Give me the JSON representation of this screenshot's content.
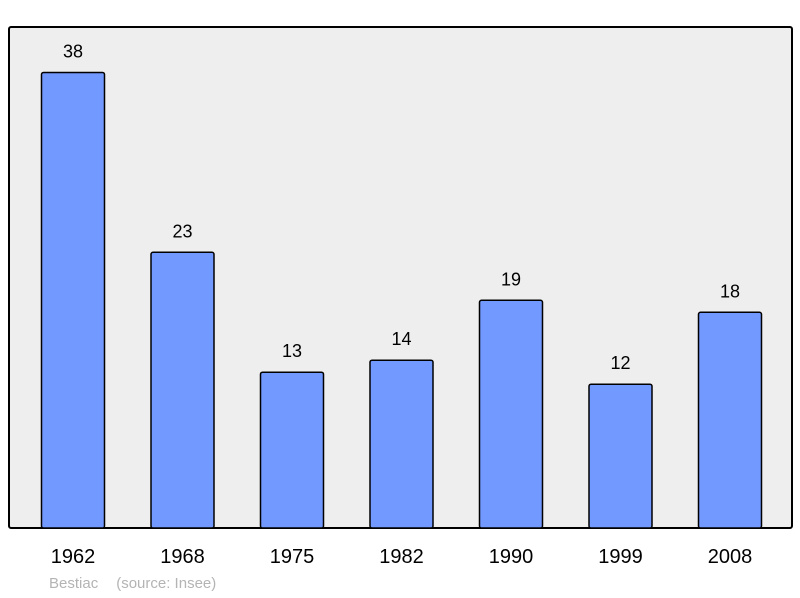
{
  "chart_data": {
    "type": "bar",
    "categories": [
      "1962",
      "1968",
      "1975",
      "1982",
      "1990",
      "1999",
      "2008"
    ],
    "values": [
      38,
      23,
      13,
      14,
      19,
      12,
      18
    ],
    "ylim": [
      0,
      41.8
    ],
    "grid": false,
    "legend": "none",
    "colors": {
      "bar_fill": "#7299ff",
      "bar_stroke": "#000000",
      "plot_background": "#eeeeee",
      "frame": "#000000"
    }
  },
  "footer": {
    "place": "Bestiac",
    "source": "(source: Insee)"
  }
}
